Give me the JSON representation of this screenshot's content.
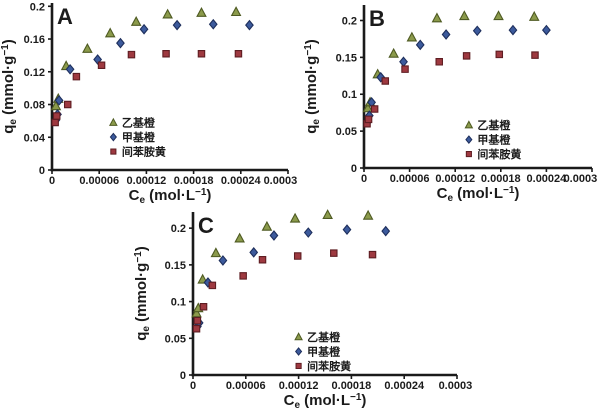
{
  "figure": {
    "background": "#ffffff",
    "text_color": "#1b1b1b",
    "axis_color": "#1a1a1a"
  },
  "chart_data": [
    {
      "type": "scatter",
      "panel_label": "A",
      "xlabel": "Ce (mol·L−1)",
      "ylabel": "qe (mmol·g−1)",
      "xlabel_parts": [
        {
          "t": "C"
        },
        {
          "t": "e",
          "s": "sub"
        },
        {
          "t": " (mol·L"
        },
        {
          "t": "−1",
          "s": "sup"
        },
        {
          "t": ")"
        }
      ],
      "ylabel_parts": [
        {
          "t": "q"
        },
        {
          "t": "e",
          "s": "sub"
        },
        {
          "t": " (mmol·g"
        },
        {
          "t": "−1",
          "s": "sup"
        },
        {
          "t": ")"
        }
      ],
      "xlim": [
        0,
        0.0003
      ],
      "ylim": [
        0,
        0.204
      ],
      "xticks": [
        0,
        6e-05,
        0.00012,
        0.00018,
        0.00024,
        0.0003
      ],
      "xtick_labels": [
        "0",
        "0.00006",
        "0.00012",
        "0.00018",
        "0.00024",
        "0.0003"
      ],
      "yticks": [
        0,
        0.04,
        0.08,
        0.12,
        0.16,
        0.2
      ],
      "ytick_labels": [
        "0",
        "0.04",
        "0.08",
        "0.12",
        "0.16",
        "0.2"
      ],
      "grid": false,
      "legend": {
        "position": "inside",
        "fx": 0.26,
        "fy": 0.68
      },
      "series": [
        {
          "name": "乙基橙",
          "marker": "triangle",
          "fill": "#8b9a4b",
          "stroke": "#4e5a22",
          "points": [
            [
              5e-06,
              0.078
            ],
            [
              8e-06,
              0.087
            ],
            [
              1.8e-05,
              0.127
            ],
            [
              4.5e-05,
              0.148
            ],
            [
              7.4e-05,
              0.167
            ],
            [
              0.000107,
              0.181
            ],
            [
              0.000147,
              0.19
            ],
            [
              0.00019,
              0.192
            ],
            [
              0.000234,
              0.193
            ]
          ]
        },
        {
          "name": "甲基橙",
          "marker": "diamond",
          "fill": "#3c5a9c",
          "stroke": "#1e2f5c",
          "points": [
            [
              5e-06,
              0.061
            ],
            [
              7e-06,
              0.068
            ],
            [
              9e-06,
              0.085
            ],
            [
              2.3e-05,
              0.123
            ],
            [
              5.8e-05,
              0.135
            ],
            [
              8.7e-05,
              0.155
            ],
            [
              0.000117,
              0.172
            ],
            [
              0.000159,
              0.177
            ],
            [
              0.000205,
              0.178
            ],
            [
              0.000251,
              0.177
            ]
          ]
        },
        {
          "name": "间苯胺黄",
          "marker": "square",
          "fill": "#9e3940",
          "stroke": "#5e1d22",
          "points": [
            [
              4e-06,
              0.058
            ],
            [
              6e-06,
              0.066
            ],
            [
              2e-05,
              0.08
            ],
            [
              3.1e-05,
              0.114
            ],
            [
              6.3e-05,
              0.128
            ],
            [
              0.000101,
              0.141
            ],
            [
              0.000145,
              0.142
            ],
            [
              0.00019,
              0.142
            ],
            [
              0.000237,
              0.142
            ]
          ]
        }
      ]
    },
    {
      "type": "scatter",
      "panel_label": "B",
      "xlabel": "Ce (mol·L−1)",
      "ylabel": "qe (mmol·g−1)",
      "xlabel_parts": [
        {
          "t": "C"
        },
        {
          "t": "e",
          "s": "sub"
        },
        {
          "t": " (mol·L"
        },
        {
          "t": "−1",
          "s": "sup"
        },
        {
          "t": ")"
        }
      ],
      "ylabel_parts": [
        {
          "t": "q"
        },
        {
          "t": "e",
          "s": "sub"
        },
        {
          "t": " (mmol·g"
        },
        {
          "t": "−1",
          "s": "sup"
        },
        {
          "t": ")"
        }
      ],
      "xlim": [
        0,
        0.0003
      ],
      "ylim": [
        0,
        0.221
      ],
      "xticks": [
        0,
        6e-05,
        0.00012,
        0.00018,
        0.00024,
        0.0003
      ],
      "xtick_labels": [
        "0",
        "0.00006",
        "0.00012",
        "0.00018",
        "0.00024",
        "0.0003"
      ],
      "yticks": [
        0,
        0.05,
        0.1,
        0.15,
        0.2
      ],
      "ytick_labels": [
        "0",
        "0.05",
        "0.1",
        "0.15",
        "0.2"
      ],
      "grid": false,
      "legend": {
        "position": "inside",
        "fx": 0.46,
        "fy": 0.7
      },
      "series": [
        {
          "name": "乙基橙",
          "marker": "triangle",
          "fill": "#8b9a4b",
          "stroke": "#4e5a22",
          "points": [
            [
              5e-06,
              0.081
            ],
            [
              8e-06,
              0.089
            ],
            [
              1.8e-05,
              0.127
            ],
            [
              3.9e-05,
              0.155
            ],
            [
              6.3e-05,
              0.177
            ],
            [
              9.6e-05,
              0.203
            ],
            [
              0.000132,
              0.206
            ],
            [
              0.000177,
              0.206
            ],
            [
              0.000224,
              0.205
            ]
          ]
        },
        {
          "name": "甲基橙",
          "marker": "diamond",
          "fill": "#3c5a9c",
          "stroke": "#1e2f5c",
          "points": [
            [
              5e-06,
              0.063
            ],
            [
              7e-06,
              0.071
            ],
            [
              1e-05,
              0.089
            ],
            [
              2.2e-05,
              0.123
            ],
            [
              5.2e-05,
              0.144
            ],
            [
              7.4e-05,
              0.167
            ],
            [
              0.000108,
              0.181
            ],
            [
              0.000149,
              0.186
            ],
            [
              0.000196,
              0.187
            ],
            [
              0.00024,
              0.187
            ]
          ]
        },
        {
          "name": "间苯胺黄",
          "marker": "square",
          "fill": "#9e3940",
          "stroke": "#5e1d22",
          "points": [
            [
              4e-06,
              0.06
            ],
            [
              6e-06,
              0.066
            ],
            [
              1.4e-05,
              0.08
            ],
            [
              2.8e-05,
              0.118
            ],
            [
              5.4e-05,
              0.134
            ],
            [
              9.9e-05,
              0.144
            ],
            [
              0.000135,
              0.152
            ],
            [
              0.000178,
              0.154
            ],
            [
              0.000225,
              0.153
            ]
          ]
        }
      ]
    },
    {
      "type": "scatter",
      "panel_label": "C",
      "xlabel": "Ce (mol·L−1)",
      "ylabel": "qe (mmol·g−1)",
      "xlabel_parts": [
        {
          "t": "C"
        },
        {
          "t": "e",
          "s": "sub"
        },
        {
          "t": " (mol·L"
        },
        {
          "t": "−1",
          "s": "sup"
        },
        {
          "t": ")"
        }
      ],
      "ylabel_parts": [
        {
          "t": "q"
        },
        {
          "t": "e",
          "s": "sub"
        },
        {
          "t": " (mmol·g"
        },
        {
          "t": "−1",
          "s": "sup"
        },
        {
          "t": ")"
        }
      ],
      "xlim": [
        0,
        0.0003
      ],
      "ylim": [
        0,
        0.222
      ],
      "xticks": [
        0,
        6e-05,
        0.00012,
        0.00018,
        0.00024,
        0.0003
      ],
      "xtick_labels": [
        "0",
        "0.00006",
        "0.00012",
        "0.00018",
        "0.00024",
        "0.0003"
      ],
      "yticks": [
        0,
        0.05,
        0.1,
        0.15,
        0.2
      ],
      "ytick_labels": [
        "0",
        "0.05",
        "0.1",
        "0.15",
        "0.2"
      ],
      "grid": false,
      "legend": {
        "position": "inside",
        "fx": 0.4,
        "fy": 0.73
      },
      "series": [
        {
          "name": "乙基橙",
          "marker": "triangle",
          "fill": "#8b9a4b",
          "stroke": "#4e5a22",
          "points": [
            [
              4e-06,
              0.084
            ],
            [
              6e-06,
              0.091
            ],
            [
              1.1e-05,
              0.13
            ],
            [
              2.6e-05,
              0.166
            ],
            [
              5.3e-05,
              0.186
            ],
            [
              8.4e-05,
              0.202
            ],
            [
              0.000116,
              0.213
            ],
            [
              0.000153,
              0.218
            ],
            [
              0.000199,
              0.217
            ]
          ]
        },
        {
          "name": "甲基橙",
          "marker": "diamond",
          "fill": "#3c5a9c",
          "stroke": "#1e2f5c",
          "points": [
            [
              5e-06,
              0.066
            ],
            [
              7e-06,
              0.071
            ],
            [
              1.7e-05,
              0.126
            ],
            [
              3.4e-05,
              0.156
            ],
            [
              6.9e-05,
              0.167
            ],
            [
              9.2e-05,
              0.19
            ],
            [
              0.000131,
              0.194
            ],
            [
              0.000175,
              0.198
            ],
            [
              0.000219,
              0.196
            ]
          ]
        },
        {
          "name": "间苯胺黄",
          "marker": "square",
          "fill": "#9e3940",
          "stroke": "#5e1d22",
          "points": [
            [
              4e-06,
              0.063
            ],
            [
              5e-06,
              0.074
            ],
            [
              1.2e-05,
              0.093
            ],
            [
              2.2e-05,
              0.122
            ],
            [
              5.7e-05,
              0.135
            ],
            [
              7.9e-05,
              0.157
            ],
            [
              0.000119,
              0.162
            ],
            [
              0.00016,
              0.166
            ],
            [
              0.000204,
              0.164
            ]
          ]
        }
      ]
    }
  ]
}
